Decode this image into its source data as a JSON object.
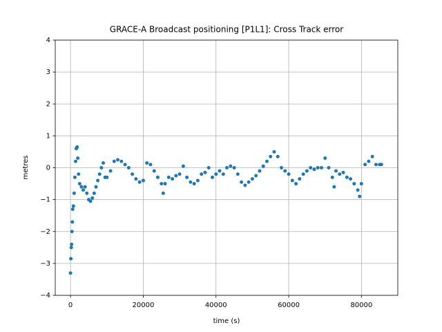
{
  "chart_data": {
    "type": "scatter",
    "title": "GRACE-A Broadcast positioning [P1L1]: Cross Track error",
    "xlabel": "time (s)",
    "ylabel": "metres",
    "color": "#1f77b4",
    "grid": true,
    "xlim": [
      -4200,
      90000
    ],
    "ylim": [
      -4,
      4
    ],
    "xticks": [
      0,
      20000,
      40000,
      60000,
      80000
    ],
    "yticks": [
      {
        "value": -4,
        "label": "−4"
      },
      {
        "value": -3,
        "label": "−3"
      },
      {
        "value": -2,
        "label": "−2"
      },
      {
        "value": -1,
        "label": "−1"
      },
      0,
      1,
      2,
      3,
      4
    ],
    "x": [
      0,
      100,
      200,
      300,
      400,
      500,
      600,
      800,
      1000,
      1200,
      1400,
      1600,
      1800,
      2000,
      2200,
      2500,
      3000,
      3500,
      4000,
      4500,
      5000,
      5500,
      6000,
      6500,
      7000,
      7500,
      8000,
      8500,
      9000,
      9500,
      10000,
      11000,
      12000,
      13000,
      14000,
      15000,
      16000,
      17000,
      18000,
      19000,
      20000,
      21000,
      22000,
      23000,
      24000,
      25000,
      25500,
      26000,
      27000,
      28000,
      29000,
      30000,
      31000,
      32000,
      33000,
      34000,
      35000,
      36000,
      37000,
      38000,
      39000,
      40000,
      41000,
      42000,
      43000,
      44000,
      45000,
      46000,
      47000,
      48000,
      49000,
      50000,
      51000,
      52000,
      53000,
      54000,
      55000,
      56000,
      57000,
      58000,
      59000,
      60000,
      61000,
      62000,
      63000,
      64000,
      65000,
      66000,
      67000,
      68000,
      69000,
      70000,
      71000,
      72000,
      72500,
      73000,
      74000,
      75000,
      76000,
      77000,
      78000,
      79000,
      79500,
      80000,
      81000,
      82000,
      83000,
      84000,
      85000,
      85500
    ],
    "values": [
      -3.3,
      -2.85,
      -2.5,
      -2.4,
      -2.0,
      -1.7,
      -1.3,
      -1.2,
      -0.8,
      -0.3,
      0.2,
      0.6,
      0.65,
      0.3,
      -0.2,
      -0.5,
      -0.6,
      -0.7,
      -0.6,
      -0.8,
      -1.0,
      -1.05,
      -0.95,
      -0.8,
      -0.6,
      -0.4,
      -0.2,
      0.0,
      0.15,
      -0.3,
      -0.3,
      -0.1,
      0.2,
      0.25,
      0.2,
      0.1,
      0.0,
      -0.2,
      -0.35,
      -0.45,
      -0.4,
      0.15,
      0.1,
      -0.1,
      -0.3,
      -0.5,
      -0.8,
      -0.5,
      -0.3,
      -0.35,
      -0.25,
      -0.2,
      0.05,
      -0.3,
      -0.45,
      -0.5,
      -0.4,
      -0.2,
      -0.15,
      0.0,
      -0.3,
      -0.2,
      -0.1,
      -0.2,
      0.0,
      0.05,
      0.0,
      -0.2,
      -0.45,
      -0.55,
      -0.45,
      -0.35,
      -0.25,
      -0.1,
      0.05,
      0.2,
      0.35,
      0.5,
      0.35,
      0.0,
      -0.1,
      -0.2,
      -0.4,
      -0.5,
      -0.35,
      -0.2,
      -0.1,
      0.0,
      -0.05,
      0.0,
      0.0,
      0.3,
      0.0,
      -0.3,
      -0.6,
      -0.1,
      -0.2,
      -0.15,
      -0.3,
      -0.35,
      -0.5,
      -0.7,
      -0.9,
      -0.5,
      0.1,
      0.2,
      0.35,
      0.1,
      0.1,
      0.1
    ]
  }
}
